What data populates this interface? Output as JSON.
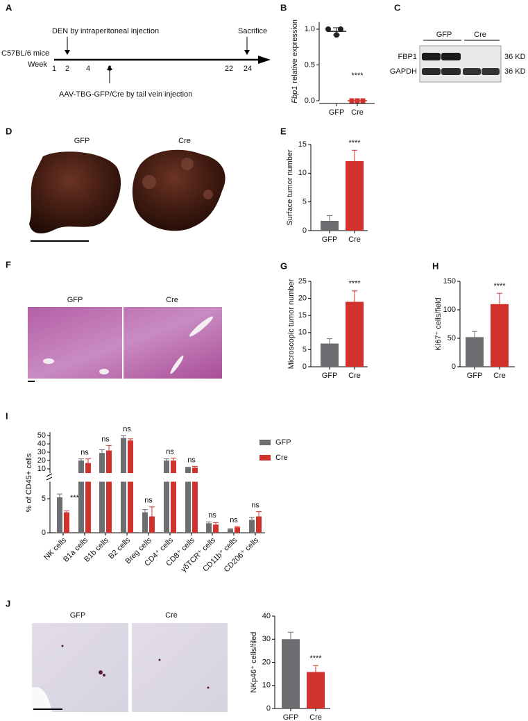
{
  "panel_labels": [
    "A",
    "B",
    "C",
    "D",
    "E",
    "F",
    "G",
    "H",
    "I",
    "J"
  ],
  "timeline": {
    "den": "DEN by intraperitoneal injection",
    "sacrifice": "Sacrifice",
    "strain": "C57BL/6 mice",
    "week_label": "Week",
    "weeks": [
      1,
      2,
      4,
      6,
      22,
      24
    ],
    "aav": "AAV-TBG-GFP/Cre by tail vein injection"
  },
  "blot": {
    "groups": [
      "GFP",
      "Cre"
    ],
    "proteins": [
      "FBP1",
      "GAPDH"
    ],
    "sizes": [
      "36 KD",
      "36 KD"
    ]
  },
  "liver_photos": {
    "labels": [
      "GFP",
      "Cre"
    ]
  },
  "he_sections": {
    "labels": [
      "GFP",
      "Cre"
    ]
  },
  "ihc_sections": {
    "labels": [
      "GFP",
      "Cre"
    ]
  },
  "chart_data": [
    {
      "type": "dot",
      "ylabel_gene": "Fbp1",
      "ylabel": "relative expression",
      "categories": [
        "GFP",
        "Cre"
      ],
      "points": [
        [
          1.0,
          1.0,
          0.92
        ],
        [
          0,
          0,
          0
        ]
      ],
      "means": [
        0.97,
        0
      ],
      "sd": [
        0.05,
        0
      ],
      "colors": [
        "#231f20",
        "#d2322d"
      ],
      "markers": [
        "circle",
        "square"
      ],
      "ylim": [
        0,
        1.1
      ],
      "yticks": [
        {
          "value": 0,
          "label": "0.0"
        },
        {
          "value": 0.5,
          "label": "0.5"
        },
        {
          "value": 1,
          "label": "1.0"
        }
      ],
      "annotation": "****"
    },
    {
      "type": "bar",
      "ylabel": "Surface tumor number",
      "categories": [
        "GFP",
        "Cre"
      ],
      "values": [
        1.7,
        12.1
      ],
      "errors": [
        0.9,
        1.9
      ],
      "colors": [
        "#6d6e71",
        "#d2322d"
      ],
      "ylim": [
        0,
        15
      ],
      "yticks": [
        0,
        5,
        10,
        15
      ],
      "annotation": "****"
    },
    {
      "type": "bar",
      "ylabel": "Microscopic tumor number",
      "categories": [
        "GFP",
        "Cre"
      ],
      "values": [
        6.8,
        19.0
      ],
      "errors": [
        1.4,
        3.2
      ],
      "colors": [
        "#6d6e71",
        "#d2322d"
      ],
      "ylim": [
        0,
        25
      ],
      "yticks": [
        0,
        5,
        10,
        15,
        20,
        25
      ],
      "annotation": "****"
    },
    {
      "type": "bar",
      "ylabel": "Ki67⁺ cells/field",
      "categories": [
        "GFP",
        "Cre"
      ],
      "values": [
        52,
        110
      ],
      "errors": [
        10,
        19
      ],
      "colors": [
        "#6d6e71",
        "#d2322d"
      ],
      "ylim": [
        0,
        150
      ],
      "yticks": [
        0,
        50,
        100,
        150
      ],
      "annotation": "****"
    },
    {
      "type": "broken_grouped_bar",
      "ylabel": "% of CD45+ cells",
      "categories": [
        "NK cells",
        "B1a cells",
        "B1b cells",
        "B2 cells",
        "Breg cells",
        "CD4⁺ cells",
        "CD8⁺ cells",
        "γδTCR⁺ cells",
        "CD11b⁺ cells",
        "CD206⁺ cells"
      ],
      "series": [
        {
          "name": "GFP",
          "color": "#6d6e71",
          "values": [
            5.2,
            20,
            29,
            47,
            3.0,
            20,
            11.5,
            1.4,
            0.5,
            1.9
          ],
          "errors": [
            0.5,
            2,
            4,
            3,
            0.4,
            2,
            0.5,
            0.2,
            0.1,
            0.4
          ]
        },
        {
          "name": "Cre",
          "color": "#d2322d",
          "values": [
            3.0,
            17,
            32,
            44,
            2.4,
            20,
            11.5,
            1.2,
            0.8,
            2.4
          ],
          "errors": [
            0.2,
            5,
            6,
            2,
            1.4,
            3,
            1.5,
            0.3,
            0.1,
            0.7
          ]
        }
      ],
      "ylim_segments": [
        [
          0,
          7.5
        ],
        [
          5,
          52
        ]
      ],
      "yticks": [
        0,
        5,
        10,
        20,
        30,
        40,
        50
      ],
      "annotations": [
        "***",
        "ns",
        "ns",
        "ns",
        "ns",
        "ns",
        "ns",
        "ns",
        "ns",
        "ns"
      ]
    },
    {
      "type": "bar",
      "ylabel": "NKp46⁺ cells/filed",
      "categories": [
        "GFP",
        "Cre"
      ],
      "values": [
        30,
        15.8
      ],
      "errors": [
        3,
        2.8
      ],
      "colors": [
        "#6d6e71",
        "#d2322d"
      ],
      "ylim": [
        0,
        40
      ],
      "yticks": [
        0,
        10,
        20,
        30,
        40
      ],
      "annotation": "****"
    }
  ]
}
